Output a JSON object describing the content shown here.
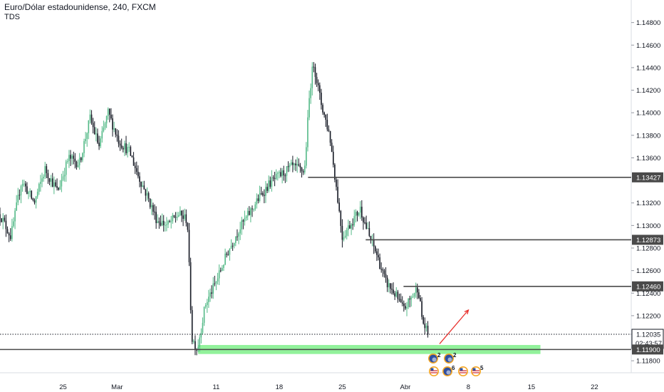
{
  "header": {
    "title": "Euro/Dólar estadounidense, 240, FXCM",
    "indicator": "TDS"
  },
  "colors": {
    "up": "#53b987",
    "down": "#131722",
    "zone": "#7ff08a",
    "level_line": "#4a4a4a",
    "arrow": "#e8302c",
    "axis_text": "#131722"
  },
  "chart_data": {
    "type": "candlestick",
    "symbol": "Euro/Dólar estadounidense",
    "interval": "240",
    "source": "FXCM",
    "ylim": [
      1.117,
      1.15
    ],
    "y_ticks": [
      "1.14800",
      "1.14600",
      "1.14400",
      "1.14200",
      "1.14000",
      "1.13800",
      "1.13600",
      "1.13200",
      "1.13000",
      "1.12800",
      "1.12600",
      "1.12400",
      "1.12200",
      "1.11800"
    ],
    "x_ticks": [
      "25",
      "Mar",
      "11",
      "18",
      "25",
      "Abr",
      "8",
      "15",
      "22"
    ],
    "x_tick_values": [
      25,
      31,
      42,
      49,
      56,
      63,
      70,
      77,
      84
    ],
    "x_range": [
      18,
      88
    ],
    "price_series_nodes": [
      [
        18.0,
        1.131
      ],
      [
        19.2,
        1.129
      ],
      [
        20.4,
        1.134
      ],
      [
        21.8,
        1.132
      ],
      [
        23.0,
        1.135
      ],
      [
        24.4,
        1.133
      ],
      [
        25.6,
        1.136
      ],
      [
        26.8,
        1.1355
      ],
      [
        28.0,
        1.1395
      ],
      [
        29.0,
        1.137
      ],
      [
        30.0,
        1.14
      ],
      [
        31.2,
        1.1375
      ],
      [
        32.4,
        1.1365
      ],
      [
        33.3,
        1.1345
      ],
      [
        34.4,
        1.1325
      ],
      [
        35.4,
        1.1305
      ],
      [
        36.6,
        1.13
      ],
      [
        37.8,
        1.131
      ],
      [
        38.8,
        1.1305
      ],
      [
        39.3,
        1.12
      ],
      [
        39.9,
        1.119
      ],
      [
        40.8,
        1.123
      ],
      [
        42.0,
        1.125
      ],
      [
        43.2,
        1.1275
      ],
      [
        44.4,
        1.1295
      ],
      [
        45.6,
        1.131
      ],
      [
        46.8,
        1.1325
      ],
      [
        48.0,
        1.1338
      ],
      [
        49.2,
        1.1345
      ],
      [
        50.4,
        1.1352
      ],
      [
        51.8,
        1.1348
      ],
      [
        52.4,
        1.142
      ],
      [
        52.8,
        1.1445
      ],
      [
        53.6,
        1.141
      ],
      [
        54.6,
        1.138
      ],
      [
        55.4,
        1.133
      ],
      [
        56.0,
        1.129
      ],
      [
        56.8,
        1.13
      ],
      [
        58.0,
        1.1315
      ],
      [
        59.0,
        1.129
      ],
      [
        59.8,
        1.1275
      ],
      [
        60.8,
        1.125
      ],
      [
        61.8,
        1.124
      ],
      [
        62.8,
        1.1225
      ],
      [
        63.6,
        1.1235
      ],
      [
        64.4,
        1.1246
      ],
      [
        64.9,
        1.1215
      ],
      [
        65.5,
        1.12035
      ]
    ],
    "levels": [
      {
        "label": "1.13427",
        "value": 1.13427
      },
      {
        "label": "1.12873",
        "value": 1.12873
      },
      {
        "label": "1.12460",
        "value": 1.1246
      }
    ],
    "current_price": {
      "label": "1.12035",
      "countdown": "02:43:57",
      "value": 1.12035
    },
    "support": {
      "label": "1.11900",
      "value": 1.119
    },
    "support_zone": {
      "from": 1.1186,
      "to": 1.1194,
      "x_start": 40.0,
      "x_end": 78.0
    },
    "projection_arrow": {
      "x0": 66.8,
      "y0": 1.1195,
      "x1": 70.0,
      "y1": 1.1225
    },
    "events": {
      "row1": [
        "2",
        "2"
      ],
      "row2": [
        "",
        "6",
        "",
        "5"
      ]
    }
  }
}
